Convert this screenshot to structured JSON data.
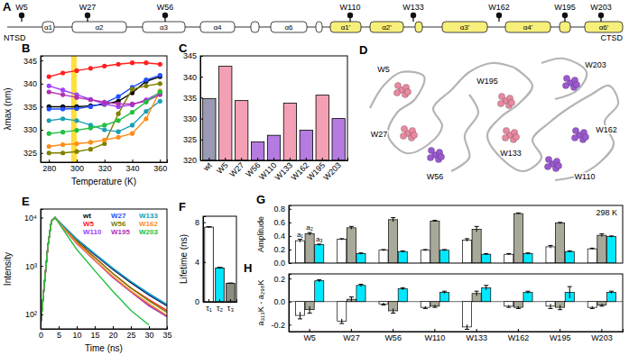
{
  "diagram": {
    "panel": "A",
    "tryptophans": [
      "W5",
      "W27",
      "W56",
      "W110",
      "W133",
      "W162",
      "W195",
      "W203"
    ],
    "helices": [
      "α1",
      "α2",
      "α3",
      "α4",
      "α6",
      "α1'",
      "α2'",
      "α3'",
      "α4'",
      "α6'"
    ],
    "domains": [
      "NTSD",
      "CTSD"
    ]
  },
  "structure": {
    "panel": "D",
    "tryptophans": [
      "W5",
      "W27",
      "W56",
      "W110",
      "W133",
      "W162",
      "W195",
      "W203"
    ],
    "colors": [
      "#e88aa0",
      "#e88aa0",
      "#9b59d0",
      "#9b59d0",
      "#e88aa0",
      "#9b59d0",
      "#e88aa0",
      "#9b59d0"
    ]
  },
  "chart_data": [
    {
      "panel": "B",
      "type": "line",
      "marker": "circle",
      "x_label": "Temperature (K)",
      "y_label": "λmax (nm)",
      "x": [
        280,
        290,
        300,
        310,
        320,
        330,
        340,
        350,
        360
      ],
      "series": [
        {
          "name": "wt",
          "color": "#000000",
          "values": [
            335.0,
            335.0,
            335.0,
            335.2,
            335.5,
            336.2,
            338.0,
            340.5,
            341.5
          ]
        },
        {
          "name": "W5",
          "color": "#ff2020",
          "values": [
            341.5,
            342.3,
            342.8,
            343.3,
            343.8,
            344.2,
            344.5,
            344.5,
            344.2
          ]
        },
        {
          "name": "W27",
          "color": "#2050ff",
          "values": [
            334.5,
            334.5,
            334.6,
            335.0,
            335.8,
            337.2,
            339.2,
            340.8,
            341.8
          ]
        },
        {
          "name": "W56",
          "color": "#808000",
          "values": [
            325.0,
            325.0,
            325.3,
            325.8,
            327.0,
            333.5,
            338.8,
            339.5,
            340.0
          ]
        },
        {
          "name": "W110",
          "color": "#a040ff",
          "values": [
            339.5,
            338.6,
            337.6,
            336.6,
            335.6,
            335.0,
            335.4,
            336.5,
            338.0
          ]
        },
        {
          "name": "W133",
          "color": "#1ca0b4",
          "values": [
            332.0,
            332.4,
            332.0,
            331.0,
            330.0,
            329.6,
            331.0,
            334.0,
            336.2
          ]
        },
        {
          "name": "W162",
          "color": "#ff8c1a",
          "values": [
            326.4,
            326.8,
            327.0,
            327.3,
            327.8,
            328.4,
            329.2,
            332.4,
            338.4
          ]
        },
        {
          "name": "W195",
          "color": "#b030b0",
          "values": [
            338.2,
            337.6,
            337.0,
            336.5,
            336.0,
            335.6,
            335.6,
            336.2,
            337.6
          ]
        },
        {
          "name": "W203",
          "color": "#20c040",
          "values": [
            329.2,
            329.5,
            329.9,
            330.4,
            331.0,
            332.0,
            333.8,
            336.0,
            338.2
          ]
        }
      ],
      "highlight": [
        296,
        300
      ],
      "xlim": [
        274,
        365
      ],
      "xticks": [
        280,
        300,
        320,
        340,
        360
      ],
      "ylim": [
        323,
        346
      ],
      "yticks": [
        325,
        330,
        335,
        340,
        345
      ]
    },
    {
      "panel": "C",
      "type": "bar",
      "categories": [
        "wt",
        "W5",
        "W27",
        "W56",
        "W110",
        "W133",
        "W162",
        "W195",
        "W203"
      ],
      "values": [
        334.8,
        342.5,
        334.3,
        324.4,
        326.0,
        333.7,
        327.2,
        335.6,
        330.0
      ],
      "colors": [
        "#9a9ab4",
        "#f4a0b4",
        "#f4a0b4",
        "#b57be0",
        "#b57be0",
        "#f4a0b4",
        "#b57be0",
        "#f4a0b4",
        "#b57be0"
      ],
      "ylim": [
        320,
        345
      ],
      "yticks": [
        320,
        325,
        330,
        335,
        340,
        345
      ]
    },
    {
      "panel": "E",
      "type": "line",
      "log": "y",
      "legend": "top-right",
      "x_label": "Time (ns)",
      "y_label": "Intensity",
      "x": [
        0,
        2,
        3,
        4,
        6,
        10,
        15,
        20,
        25,
        30,
        35
      ],
      "series": [
        {
          "name": "wt",
          "color": "#000000",
          "values": [
            60,
            2500,
            8500,
            10000,
            7000,
            3500,
            1700,
            850,
            450,
            250,
            150
          ]
        },
        {
          "name": "W5",
          "color": "#ff2020",
          "values": [
            60,
            2500,
            8500,
            10000,
            6500,
            3200,
            1500,
            700,
            350,
            200,
            120
          ]
        },
        {
          "name": "W110",
          "color": "#a040ff",
          "values": [
            60,
            2500,
            8500,
            10000,
            6600,
            3000,
            1300,
            600,
            300,
            160,
            90
          ]
        },
        {
          "name": "W27",
          "color": "#2050ff",
          "values": [
            60,
            2500,
            8500,
            10000,
            7100,
            3600,
            1750,
            880,
            470,
            260,
            155
          ]
        },
        {
          "name": "W56",
          "color": "#808000",
          "values": [
            60,
            2500,
            8500,
            10000,
            6800,
            3300,
            1500,
            700,
            350,
            190,
            110
          ]
        },
        {
          "name": "W195",
          "color": "#b030b0",
          "values": [
            60,
            2500,
            8500,
            10000,
            6400,
            2900,
            1300,
            580,
            290,
            150,
            90
          ]
        },
        {
          "name": "W133",
          "color": "#1ca0b4",
          "values": [
            60,
            2500,
            8500,
            10000,
            7000,
            3600,
            1800,
            900,
            480,
            270,
            160
          ]
        },
        {
          "name": "W162",
          "color": "#ff8c1a",
          "values": [
            60,
            2500,
            8500,
            10000,
            6500,
            3000,
            1320,
            610,
            305,
            165,
            95
          ]
        },
        {
          "name": "W203",
          "color": "#20c040",
          "values": [
            60,
            2500,
            8500,
            10000,
            6000,
            2200,
            800,
            300,
            120,
            60,
            null
          ]
        }
      ],
      "xlim": [
        0,
        35
      ],
      "xticks": [
        0,
        5,
        10,
        15,
        20,
        25,
        30,
        35
      ],
      "ylim": [
        50,
        15000
      ],
      "yticks": [
        {
          "value": 100,
          "label": "10²"
        },
        {
          "value": 1000,
          "label": "10³"
        },
        {
          "value": 10000,
          "label": "10⁴"
        }
      ]
    },
    {
      "panel": "F",
      "type": "bar",
      "y_label": "Lifetime (ns)",
      "categories": [
        "τ₁",
        "τ₂",
        "τ₃"
      ],
      "values": [
        7.5,
        3.4,
        1.85
      ],
      "errors": [
        0.05,
        0.06,
        0.04
      ],
      "colors": [
        "#ffffff",
        "#00e8ff",
        "#8c8c80"
      ],
      "ylim": [
        0,
        8.6
      ],
      "yticks": [
        0,
        4,
        8
      ]
    },
    {
      "panel": "G",
      "type": "grouped_bar",
      "y_label": "Amplitude",
      "annotation": "298 K",
      "tick_labels": "y",
      "categories": [
        "W5",
        "W27",
        "W56",
        "W110",
        "W133",
        "W162",
        "W195",
        "W203"
      ],
      "series": [
        {
          "name": "a₁",
          "color": "#ffffff",
          "values": [
            0.33,
            0.35,
            0.19,
            0.19,
            0.34,
            0.13,
            0.24,
            0.21
          ],
          "errors": [
            0.02,
            0.01,
            0.01,
            0.01,
            0.02,
            0.01,
            0.02,
            0.01
          ]
        },
        {
          "name": "a₂",
          "color": "#a9a99a",
          "values": [
            0.43,
            0.52,
            0.64,
            0.62,
            0.5,
            0.73,
            0.59,
            0.41
          ],
          "errors": [
            0.02,
            0.02,
            0.03,
            0.01,
            0.04,
            0.01,
            0.01,
            0.02
          ]
        },
        {
          "name": "a₃",
          "color": "#00e8ff",
          "values": [
            0.27,
            0.14,
            0.17,
            0.19,
            0.13,
            0.14,
            0.17,
            0.39
          ],
          "errors": [
            0.01,
            0.01,
            0.01,
            0.01,
            0.01,
            0.01,
            0.01,
            0.01
          ]
        }
      ],
      "ylim": [
        0,
        0.85
      ],
      "yticks": [
        {
          "value": 0,
          "label": "0.0"
        },
        0.2,
        0.4,
        0.6,
        0.8
      ]
    },
    {
      "panel": "H",
      "type": "grouped_bar",
      "y_label": "a₃₁₃K - a₂₉₈K",
      "categories": [
        "W5",
        "W27",
        "W56",
        "W110",
        "W133",
        "W162",
        "W195",
        "W203"
      ],
      "series": [
        {
          "color": "#ffffff",
          "values": [
            -0.12,
            -0.17,
            -0.02,
            -0.05,
            -0.22,
            -0.04,
            -0.04,
            -0.05
          ],
          "errors": [
            0.03,
            0.02,
            0.01,
            0.01,
            0.02,
            0.01,
            0.02,
            0.01
          ]
        },
        {
          "color": "#a9a99a",
          "values": [
            -0.07,
            0.02,
            -0.08,
            -0.04,
            0.07,
            -0.05,
            -0.05,
            -0.03
          ],
          "errors": [
            0.03,
            0.02,
            0.02,
            0.01,
            0.02,
            0.01,
            0.02,
            0.01
          ]
        },
        {
          "color": "#00e8ff",
          "values": [
            0.18,
            0.14,
            0.11,
            0.08,
            0.12,
            0.08,
            0.08,
            0.08
          ],
          "errors": [
            0.01,
            0.01,
            0.01,
            0.01,
            0.02,
            0.01,
            0.05,
            0.01
          ]
        }
      ],
      "ylim": [
        -0.26,
        0.24
      ],
      "yticks": [
        -0.2,
        {
          "value": 0,
          "label": "0.0"
        },
        0.2
      ]
    }
  ]
}
